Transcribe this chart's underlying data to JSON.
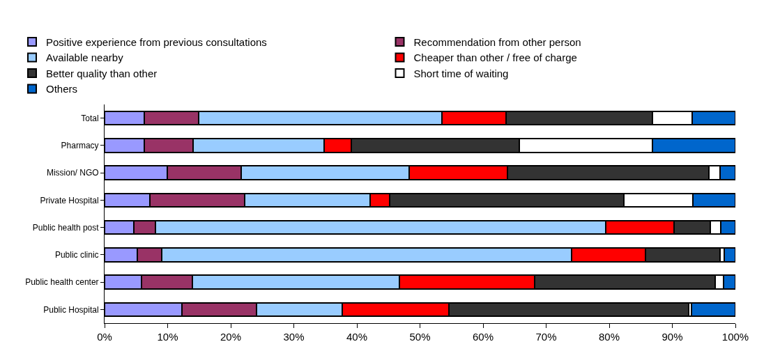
{
  "chart_data": {
    "type": "bar",
    "orientation": "horizontal",
    "stacked": true,
    "categories": [
      "Total",
      "Pharmacy",
      "Mission/ NGO",
      "Private Hospital",
      "Public health post",
      "Public clinic",
      "Public health center",
      "Public Hospital"
    ],
    "series": [
      {
        "name": "Positive experience from previous consultations",
        "color": "#9999ff",
        "values": [
          6.3,
          6.3,
          9.9,
          7.2,
          4.6,
          5.2,
          5.9,
          12.3
        ]
      },
      {
        "name": "Recommendation from other person",
        "color": "#993366",
        "values": [
          8.6,
          7.7,
          11.8,
          15.0,
          3.5,
          3.9,
          8.0,
          11.8
        ]
      },
      {
        "name": "Available nearby",
        "color": "#99ccff",
        "values": [
          38.6,
          20.8,
          26.6,
          19.9,
          71.4,
          64.9,
          32.8,
          13.6
        ]
      },
      {
        "name": "Cheaper than other / free of charge",
        "color": "#ff0000",
        "values": [
          10.2,
          4.3,
          15.6,
          3.1,
          10.8,
          11.8,
          21.5,
          16.9
        ]
      },
      {
        "name": "Better quality than other",
        "color": "#333333",
        "values": [
          23.1,
          26.7,
          31.9,
          37.1,
          5.7,
          11.8,
          28.6,
          38.0
        ]
      },
      {
        "name": "Short time of waiting",
        "color": "#ffffff",
        "values": [
          6.4,
          21.1,
          1.8,
          11.0,
          1.7,
          0.6,
          1.3,
          0.4
        ]
      },
      {
        "name": "Others",
        "color": "#0066cc",
        "values": [
          6.8,
          13.1,
          2.4,
          6.7,
          2.3,
          1.8,
          1.9,
          7.0
        ]
      }
    ],
    "xlim": [
      0,
      100
    ],
    "xticks": [
      {
        "value": 0,
        "label": "0%"
      },
      {
        "value": 10,
        "label": "10%"
      },
      {
        "value": 20,
        "label": "20%"
      },
      {
        "value": 30,
        "label": "30%"
      },
      {
        "value": 40,
        "label": "40%"
      },
      {
        "value": 50,
        "label": "50%"
      },
      {
        "value": 60,
        "label": "60%"
      },
      {
        "value": 70,
        "label": "70%"
      },
      {
        "value": 80,
        "label": "80%"
      },
      {
        "value": 90,
        "label": "90%"
      },
      {
        "value": 100,
        "label": "100%"
      }
    ],
    "legend": "top"
  }
}
